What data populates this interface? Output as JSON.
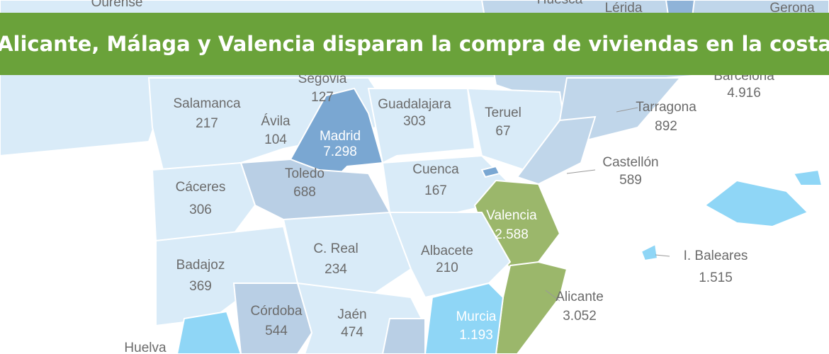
{
  "header": {
    "title": "Alicante, Málaga y Valencia disparan la compra de viviendas en la costa"
  },
  "map": {
    "labels": [
      "Ourense",
      "Huesca",
      "Lérida",
      "Gerona",
      "Huelva"
    ],
    "regions": [
      {
        "name": "Segovia",
        "value": "127"
      },
      {
        "name": "Salamanca",
        "value": "217"
      },
      {
        "name": "Ávila",
        "value": "104"
      },
      {
        "name": "Madrid",
        "value": "7.298"
      },
      {
        "name": "Guadalajara",
        "value": "303"
      },
      {
        "name": "Teruel",
        "value": "67"
      },
      {
        "name": "Barcelona",
        "value": "4.916"
      },
      {
        "name": "Tarragona",
        "value": "892"
      },
      {
        "name": "Castellón",
        "value": "589"
      },
      {
        "name": "Toledo",
        "value": "688"
      },
      {
        "name": "Cuenca",
        "value": "167"
      },
      {
        "name": "Cáceres",
        "value": "306"
      },
      {
        "name": "Valencia",
        "value": "2.588"
      },
      {
        "name": "C. Real",
        "value": "234"
      },
      {
        "name": "Albacete",
        "value": "210"
      },
      {
        "name": "Badajoz",
        "value": "369"
      },
      {
        "name": "I. Baleares",
        "value": "1.515"
      },
      {
        "name": "Alicante",
        "value": "3.052"
      },
      {
        "name": "Córdoba",
        "value": "544"
      },
      {
        "name": "Jaén",
        "value": "474"
      },
      {
        "name": "Murcia",
        "value": "1.193"
      }
    ]
  }
}
